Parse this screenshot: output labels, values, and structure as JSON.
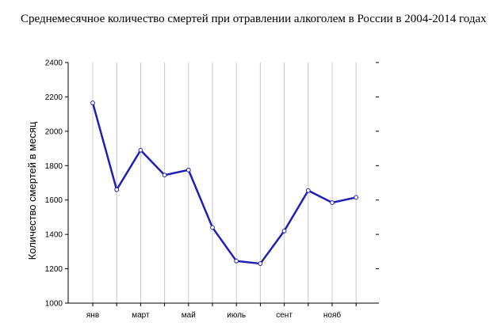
{
  "chart_data": {
    "type": "line",
    "title": "Среднемесячное количество смертей при отравлении алкоголем в России в 2004-2014 годах",
    "xlabel": "",
    "ylabel": "Количество смертей в месяц",
    "x_tick_labels": [
      "янв",
      "",
      "март",
      "",
      "май",
      "",
      "июль",
      "",
      "сент",
      "",
      "нояб",
      ""
    ],
    "categories": [
      "1",
      "2",
      "3",
      "4",
      "5",
      "6",
      "7",
      "8",
      "9",
      "10",
      "11",
      "12"
    ],
    "values": [
      2165,
      1660,
      1890,
      1745,
      1775,
      1440,
      1245,
      1230,
      1420,
      1655,
      1585,
      1615
    ],
    "ylim": [
      1000,
      2400
    ],
    "yticks": [
      1000,
      1200,
      1400,
      1600,
      1800,
      2000,
      2200,
      2400
    ],
    "grid": "vertical",
    "colors": {
      "line": "#1f1fb4",
      "marker_fill": "#ffffff",
      "grid": "#c8c8c8"
    }
  }
}
